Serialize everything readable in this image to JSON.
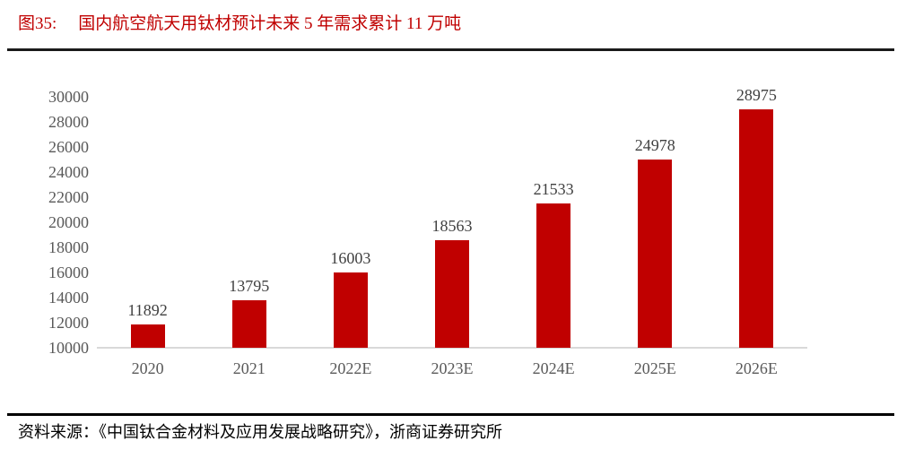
{
  "figure": {
    "number_label": "图35:",
    "title": "国内航空航天用钛材预计未来 5 年需求累计 11 万吨"
  },
  "chart_data": {
    "type": "bar",
    "categories": [
      "2020",
      "2021",
      "2022E",
      "2023E",
      "2024E",
      "2025E",
      "2026E"
    ],
    "values": [
      11892,
      13795,
      16003,
      18563,
      21533,
      24978,
      28975
    ],
    "data_labels": [
      "11892",
      "13795",
      "16003",
      "18563",
      "21533",
      "24978",
      "28975"
    ],
    "y_ticks": [
      "30000",
      "28000",
      "26000",
      "24000",
      "22000",
      "20000",
      "18000",
      "16000",
      "14000",
      "12000",
      "10000"
    ],
    "ylim": [
      10000,
      30000
    ],
    "y_tick_step": 2000,
    "grid": false,
    "legend": "none",
    "data_labels_shown": true,
    "colors": {
      "bar": "#C00000",
      "title": "#C00000",
      "axis_line": "#D9D9D9",
      "tick_label": "#595959",
      "data_label": "#404040",
      "rule": "#1a1a1a"
    }
  },
  "footer": {
    "source_text": "资料来源：《中国钛合金材料及应用发展战略研究》，浙商证券研究所"
  }
}
